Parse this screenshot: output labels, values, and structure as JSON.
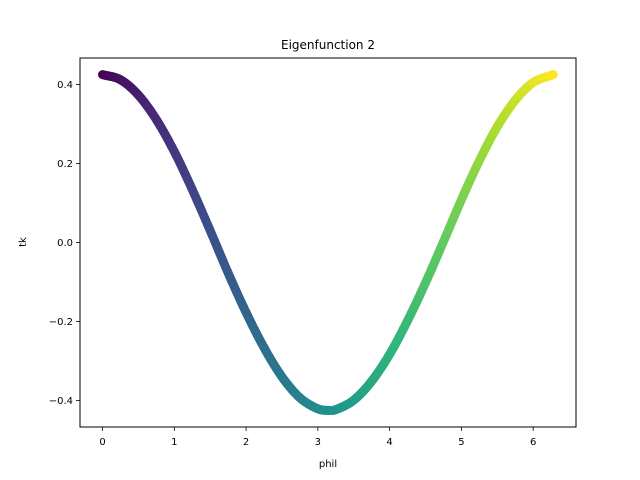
{
  "chart_data": {
    "type": "scatter",
    "title": "Eigenfunction 2",
    "xlabel": "phil",
    "ylabel": "tk",
    "xlim": [
      -0.314,
      6.597
    ],
    "ylim": [
      -0.467,
      0.467
    ],
    "xticks": [
      0,
      1,
      2,
      3,
      4,
      5,
      6
    ],
    "xtick_labels": [
      "0",
      "1",
      "2",
      "3",
      "4",
      "5",
      "6"
    ],
    "yticks": [
      -0.4,
      -0.2,
      0.0,
      0.2,
      0.4
    ],
    "ytick_labels": [
      "−0.4",
      "−0.2",
      "0.0",
      "0.2",
      "0.4"
    ],
    "grid": false,
    "colormap": "viridis",
    "color_by": "x",
    "series": [
      {
        "x": [
          0.0,
          0.25,
          0.5,
          0.75,
          1.0,
          1.25,
          1.5,
          1.75,
          2.0,
          2.25,
          2.5,
          2.75,
          3.0,
          3.14,
          3.25,
          3.5,
          3.75,
          4.0,
          4.25,
          4.5,
          4.75,
          5.0,
          5.25,
          5.5,
          5.75,
          6.0,
          6.28
        ],
        "y": [
          0.425,
          0.412,
          0.373,
          0.311,
          0.23,
          0.134,
          0.03,
          -0.077,
          -0.177,
          -0.266,
          -0.34,
          -0.393,
          -0.421,
          -0.425,
          -0.423,
          -0.399,
          -0.351,
          -0.283,
          -0.198,
          -0.102,
          0.002,
          0.108,
          0.207,
          0.293,
          0.36,
          0.405,
          0.425
        ]
      }
    ]
  }
}
